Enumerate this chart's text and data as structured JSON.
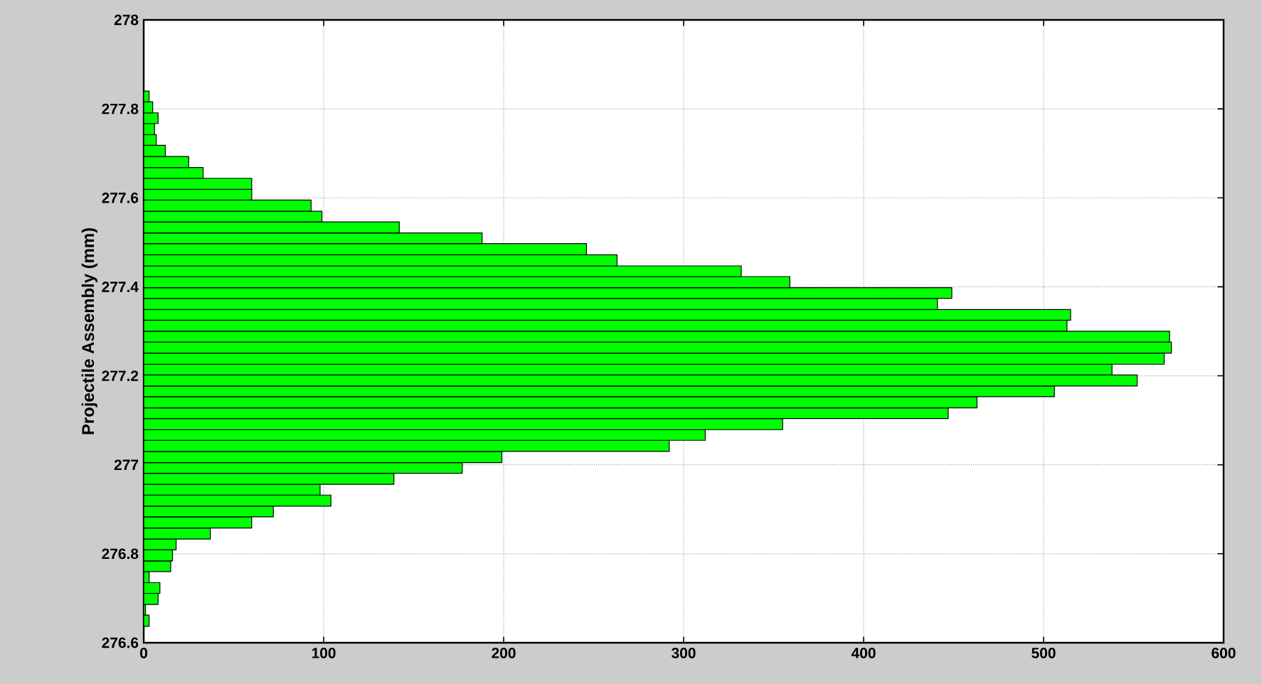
{
  "chart_data": {
    "type": "histogram",
    "orientation": "horizontal",
    "ylabel": "Projectile Assembly (mm)",
    "bins": [
      276.637,
      276.662,
      276.686,
      276.711,
      276.735,
      276.76,
      276.784,
      276.809,
      276.833,
      276.858,
      276.883,
      276.907,
      276.932,
      276.956,
      276.981,
      277.005,
      277.03,
      277.055,
      277.079,
      277.104,
      277.128,
      277.153,
      277.177,
      277.202,
      277.226,
      277.251,
      277.276,
      277.3,
      277.325,
      277.349,
      277.374,
      277.398,
      277.423,
      277.447,
      277.472,
      277.497,
      277.521,
      277.546,
      277.57,
      277.595,
      277.619,
      277.644,
      277.668,
      277.693,
      277.718,
      277.742,
      277.767,
      277.791,
      277.816,
      277.84
    ],
    "values": [
      3,
      1,
      8,
      9,
      3,
      15,
      16,
      18,
      37,
      60,
      72,
      104,
      98,
      139,
      177,
      199,
      292,
      312,
      355,
      447,
      463,
      506,
      552,
      538,
      567,
      571,
      570,
      513,
      515,
      441,
      449,
      359,
      332,
      263,
      246,
      188,
      142,
      99,
      93,
      60,
      60,
      33,
      25,
      12,
      7,
      6,
      8,
      5,
      3
    ],
    "color": "#00ff00",
    "xlim": [
      0,
      600
    ],
    "xticks": [
      0,
      100,
      200,
      300,
      400,
      500,
      600
    ],
    "ylim": [
      276.6,
      278
    ],
    "yticks": [
      276.6,
      276.8,
      277,
      277.2,
      277.4,
      277.6,
      277.8,
      278
    ],
    "grid": true
  }
}
